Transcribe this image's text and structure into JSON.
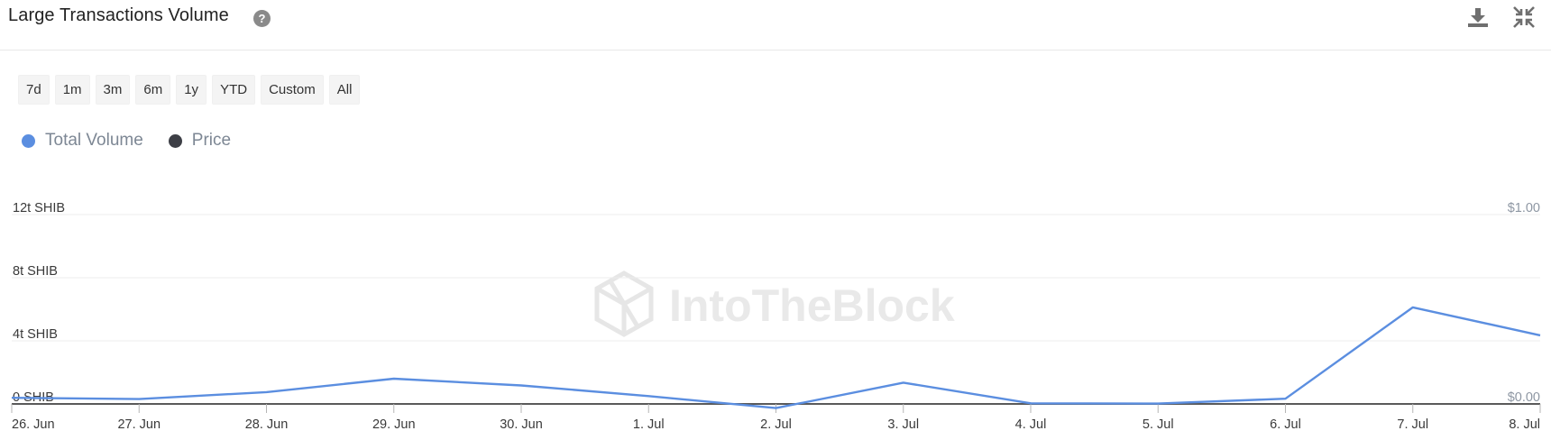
{
  "header": {
    "title": "Large Transactions Volume",
    "help_icon": "question-circle-icon",
    "download_icon": "download-icon",
    "collapse_icon": "collapse-icon"
  },
  "range_buttons": [
    "7d",
    "1m",
    "3m",
    "6m",
    "1y",
    "YTD",
    "Custom",
    "All"
  ],
  "legend": [
    {
      "label": "Total Volume",
      "color": "#5b8ee0"
    },
    {
      "label": "Price",
      "color": "#3d3f46"
    }
  ],
  "watermark": "IntoTheBlock",
  "colors": {
    "volume_line": "#5b8ee0",
    "grid": "#ececec",
    "axis": "#5a5a5a"
  },
  "chart_data": {
    "type": "line",
    "categories": [
      "26. Jun",
      "27. Jun",
      "28. Jun",
      "29. Jun",
      "30. Jun",
      "1. Jul",
      "2. Jul",
      "3. Jul",
      "4. Jul",
      "5. Jul",
      "6. Jul",
      "7. Jul",
      "8. Jul"
    ],
    "series": [
      {
        "name": "Total Volume",
        "values": [
          0.39,
          0.31,
          0.75,
          1.6,
          1.17,
          0.5,
          -0.26,
          1.35,
          0.04,
          0.02,
          0.33,
          6.12,
          4.35
        ]
      }
    ],
    "y_ticks": [
      "0 SHIB",
      "4t SHIB",
      "8t SHIB",
      "12t SHIB"
    ],
    "y_tick_values": [
      0,
      4,
      8,
      12
    ],
    "y_right_ticks": [
      "$0.00",
      "$1.00"
    ],
    "ylim": [
      0,
      12
    ],
    "grid": true,
    "legend_position": "top-left"
  }
}
